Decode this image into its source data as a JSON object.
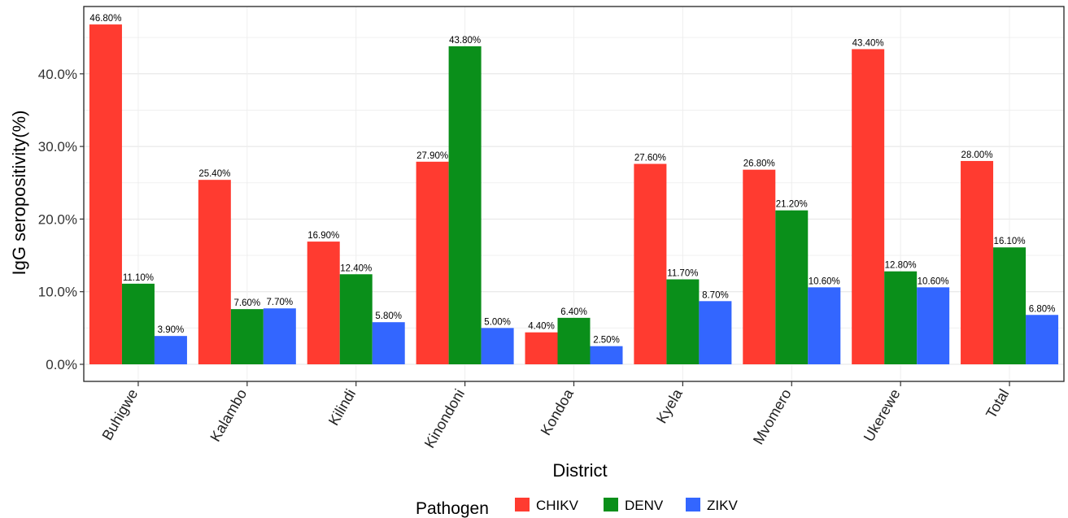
{
  "chart_data": {
    "type": "bar",
    "xlabel": "District",
    "ylabel": "IgG seropositivity(%)",
    "ylim": [
      0,
      48
    ],
    "yticks": [
      0,
      10,
      20,
      30,
      40
    ],
    "ytick_labels": [
      "0.0%",
      "10.0%",
      "20.0%",
      "30.0%",
      "40.0%"
    ],
    "grid": true,
    "legend": {
      "title": "Pathogen",
      "position": "bottom"
    },
    "categories": [
      "Buhigwe",
      "Kalambo",
      "Kilindi",
      "Kinondoni",
      "Kondoa",
      "Kyela",
      "Mvomero",
      "Ukerewe",
      "Total"
    ],
    "series": [
      {
        "name": "CHIKV",
        "color": "#ff3b30",
        "values": [
          46.8,
          25.4,
          16.9,
          27.9,
          4.4,
          27.6,
          26.8,
          43.4,
          28.0
        ],
        "labels": [
          "46.80%",
          "25.40%",
          "16.90%",
          "27.90%",
          "4.40%",
          "27.60%",
          "26.80%",
          "43.40%",
          "28.00%"
        ]
      },
      {
        "name": "DENV",
        "color": "#0a8f1a",
        "values": [
          11.1,
          7.6,
          12.4,
          43.8,
          6.4,
          11.7,
          21.2,
          12.8,
          16.1
        ],
        "labels": [
          "11.10%",
          "7.60%",
          "12.40%",
          "43.80%",
          "6.40%",
          "11.70%",
          "21.20%",
          "12.80%",
          "16.10%"
        ]
      },
      {
        "name": "ZIKV",
        "color": "#3366ff",
        "values": [
          3.9,
          7.7,
          5.8,
          5.0,
          2.5,
          8.7,
          10.6,
          10.6,
          6.8
        ],
        "labels": [
          "3.90%",
          "7.70%",
          "5.80%",
          "5.00%",
          "2.50%",
          "8.70%",
          "10.60%",
          "10.60%",
          "6.80%"
        ]
      }
    ]
  }
}
